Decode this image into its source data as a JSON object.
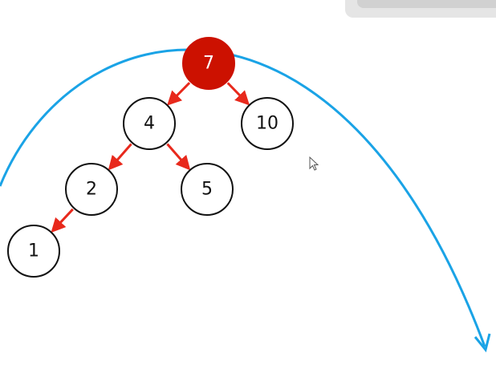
{
  "diagram": {
    "root": "7",
    "nodes": [
      {
        "id": "n7",
        "label": "7",
        "highlighted": true
      },
      {
        "id": "n4",
        "label": "4",
        "highlighted": false
      },
      {
        "id": "n10",
        "label": "10",
        "highlighted": false
      },
      {
        "id": "n2",
        "label": "2",
        "highlighted": false
      },
      {
        "id": "n5",
        "label": "5",
        "highlighted": false
      },
      {
        "id": "n1",
        "label": "1",
        "highlighted": false
      }
    ],
    "edges": [
      {
        "from": "n7",
        "to": "n4"
      },
      {
        "from": "n7",
        "to": "n10"
      },
      {
        "from": "n4",
        "to": "n2"
      },
      {
        "from": "n4",
        "to": "n5"
      },
      {
        "from": "n2",
        "to": "n1"
      }
    ],
    "colors": {
      "highlight_fill": "#cc1100",
      "highlight_text": "#ffffff",
      "node_stroke": "#111111",
      "node_text": "#111111",
      "edge": "#e8291c",
      "curve": "#1aa3e6"
    }
  },
  "cursor": {
    "icon": "mouse-pointer-icon"
  }
}
